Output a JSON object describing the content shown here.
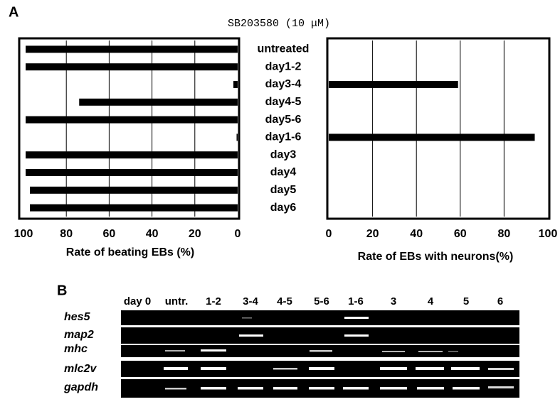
{
  "panel_a_label": "A",
  "title": "SB203580 (10 μM)",
  "chart_data": [
    {
      "type": "bar",
      "orientation": "horizontal",
      "categories": [
        "untreated",
        "day1-2",
        "day3-4",
        "day4-5",
        "day5-6",
        "day1-6",
        "day3",
        "day4",
        "day5",
        "day6"
      ],
      "values": [
        99,
        99,
        2,
        74,
        99,
        0.5,
        99,
        99,
        97,
        97
      ],
      "xlabel": "Rate of beating EBs (%)",
      "xlim": [
        0,
        100
      ],
      "xticks": [
        0,
        20,
        40,
        60,
        80,
        100
      ],
      "x_inverted": true,
      "grid": true,
      "color": "#000000"
    },
    {
      "type": "bar",
      "orientation": "horizontal",
      "values": [
        0,
        0,
        59,
        0,
        0,
        94,
        0,
        0,
        0,
        0
      ],
      "xlabel": "Rate of EBs with neurons(%)",
      "xlim": [
        0,
        100
      ],
      "xticks": [
        0,
        20,
        40,
        60,
        80,
        100
      ],
      "x_inverted": false,
      "grid": true,
      "color": "#000000"
    }
  ],
  "panel_b": {
    "label": "B",
    "lanes": [
      "day 0",
      "untr.",
      "1-2",
      "3-4",
      "4-5",
      "5-6",
      "1-6",
      "3",
      "4",
      "5",
      "6"
    ],
    "genes": [
      "hes5",
      "map2",
      "mhc",
      "mlc2v",
      "gapdh"
    ]
  }
}
